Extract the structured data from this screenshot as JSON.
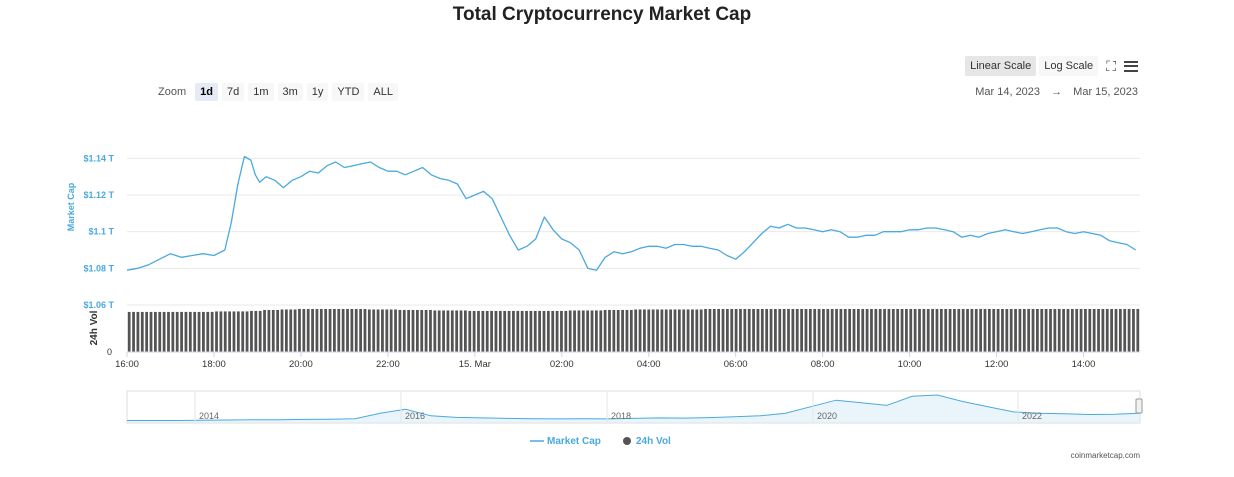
{
  "toolbar": {
    "zoom_label": "Zoom",
    "zoom_options": [
      "1d",
      "7d",
      "1m",
      "3m",
      "1y",
      "YTD",
      "ALL"
    ],
    "zoom_active": "1d",
    "linear_label": "Linear Scale",
    "log_label": "Log Scale",
    "range_from": "Mar 14, 2023",
    "range_sep": "→",
    "range_to": "Mar 15, 2023",
    "fullscreen_icon": "fullscreen-icon",
    "menu_icon": "menu-icon"
  },
  "credit": "coinmarketcap.com",
  "colors": {
    "market_cap": "#4aa9de",
    "volume": "#545454",
    "navigator_fill": "#dceef9"
  },
  "chart_data": {
    "type": "line",
    "title": "Total Cryptocurrency Market Cap",
    "ylabel": "Market Cap",
    "y2label": "24h Vol",
    "yticks": [
      "$1.06 T",
      "$1.08 T",
      "$1.1 T",
      "$1.12 T",
      "$1.14 T"
    ],
    "ylim": [
      1.06,
      1.15
    ],
    "y2_zero_label": "0",
    "xticks": [
      "16:00",
      "18:00",
      "20:00",
      "22:00",
      "15. Mar",
      "02:00",
      "04:00",
      "06:00",
      "08:00",
      "10:00",
      "12:00",
      "14:00"
    ],
    "xlim_hours": [
      16,
      39.3
    ],
    "legend": [
      "Market Cap",
      "24h Vol"
    ],
    "legend_position": "bottom-center",
    "series": [
      {
        "name": "Market Cap",
        "unit": "$ trillion",
        "x_hours_since_mar14_00": [
          16.0,
          16.25,
          16.5,
          16.75,
          17.0,
          17.25,
          17.5,
          17.75,
          18.0,
          18.25,
          18.4,
          18.55,
          18.7,
          18.85,
          18.95,
          19.05,
          19.2,
          19.4,
          19.6,
          19.8,
          20.0,
          20.2,
          20.4,
          20.6,
          20.8,
          21.0,
          21.2,
          21.4,
          21.6,
          21.8,
          22.0,
          22.2,
          22.4,
          22.6,
          22.8,
          23.0,
          23.2,
          23.4,
          23.6,
          23.8,
          24.0,
          24.2,
          24.4,
          24.6,
          24.8,
          25.0,
          25.2,
          25.4,
          25.6,
          25.8,
          26.0,
          26.2,
          26.4,
          26.6,
          26.8,
          27.0,
          27.2,
          27.4,
          27.6,
          27.8,
          28.0,
          28.2,
          28.4,
          28.6,
          28.8,
          29.0,
          29.2,
          29.4,
          29.6,
          29.8,
          30.0,
          30.2,
          30.4,
          30.6,
          30.8,
          31.0,
          31.2,
          31.4,
          31.6,
          31.8,
          32.0,
          32.2,
          32.4,
          32.6,
          32.8,
          33.0,
          33.2,
          33.4,
          33.6,
          33.8,
          34.0,
          34.2,
          34.4,
          34.6,
          34.8,
          35.0,
          35.2,
          35.4,
          35.6,
          35.8,
          36.0,
          36.2,
          36.4,
          36.6,
          36.8,
          37.0,
          37.2,
          37.4,
          37.6,
          37.8,
          38.0,
          38.2,
          38.4,
          38.6,
          38.8,
          39.0,
          39.2
        ],
        "values": [
          1.079,
          1.08,
          1.082,
          1.085,
          1.088,
          1.086,
          1.087,
          1.088,
          1.087,
          1.09,
          1.105,
          1.126,
          1.141,
          1.139,
          1.131,
          1.127,
          1.13,
          1.128,
          1.124,
          1.128,
          1.13,
          1.133,
          1.132,
          1.136,
          1.138,
          1.135,
          1.136,
          1.137,
          1.138,
          1.135,
          1.133,
          1.133,
          1.131,
          1.133,
          1.135,
          1.131,
          1.129,
          1.128,
          1.126,
          1.118,
          1.12,
          1.122,
          1.118,
          1.108,
          1.098,
          1.09,
          1.092,
          1.096,
          1.108,
          1.101,
          1.096,
          1.094,
          1.09,
          1.08,
          1.079,
          1.086,
          1.089,
          1.088,
          1.089,
          1.091,
          1.092,
          1.092,
          1.091,
          1.093,
          1.093,
          1.092,
          1.092,
          1.091,
          1.09,
          1.087,
          1.085,
          1.089,
          1.094,
          1.099,
          1.103,
          1.102,
          1.104,
          1.102,
          1.102,
          1.101,
          1.1,
          1.101,
          1.1,
          1.097,
          1.097,
          1.098,
          1.098,
          1.1,
          1.1,
          1.1,
          1.101,
          1.101,
          1.102,
          1.102,
          1.101,
          1.1,
          1.097,
          1.098,
          1.097,
          1.099,
          1.1,
          1.101,
          1.1,
          1.099,
          1.1,
          1.101,
          1.102,
          1.102,
          1.1,
          1.099,
          1.1,
          1.099,
          1.098,
          1.095,
          1.094,
          1.093,
          1.09
        ]
      },
      {
        "name": "24h Vol",
        "type": "bar",
        "relative_values": [
          0.82,
          0.82,
          0.82,
          0.82,
          0.82,
          0.83,
          0.83,
          0.84,
          0.86,
          0.87,
          0.88,
          0.88,
          0.88,
          0.88,
          0.87,
          0.87,
          0.86,
          0.86,
          0.85,
          0.85,
          0.84,
          0.84,
          0.84,
          0.84,
          0.84,
          0.84,
          0.85,
          0.85,
          0.86,
          0.86,
          0.87,
          0.87,
          0.87,
          0.87,
          0.88,
          0.88,
          0.88,
          0.88,
          0.88,
          0.88,
          0.88,
          0.88,
          0.88,
          0.88,
          0.88,
          0.88,
          0.88,
          0.88,
          0.88,
          0.88,
          0.88,
          0.88,
          0.88,
          0.88,
          0.88,
          0.88,
          0.88,
          0.88,
          0.88,
          0.88
        ]
      }
    ],
    "navigator": {
      "labels": [
        "2014",
        "2016",
        "2018",
        "2020",
        "2022"
      ],
      "relative_values": [
        0.02,
        0.02,
        0.02,
        0.03,
        0.04,
        0.05,
        0.05,
        0.06,
        0.07,
        0.09,
        0.3,
        0.45,
        0.2,
        0.14,
        0.12,
        0.1,
        0.09,
        0.08,
        0.09,
        0.08,
        0.1,
        0.12,
        0.11,
        0.13,
        0.16,
        0.2,
        0.3,
        0.55,
        0.8,
        0.7,
        0.6,
        0.95,
        1.0,
        0.75,
        0.55,
        0.35,
        0.3,
        0.28,
        0.25,
        0.26,
        0.3
      ]
    }
  }
}
